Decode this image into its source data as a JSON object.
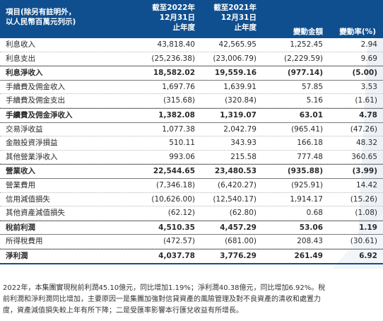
{
  "header": {
    "label_line1": "項目(除另有註明外，",
    "label_line2": "以人民幣百萬元列示)",
    "col2022": "截至2022年\n12月31日\n止年度",
    "col2021": "截至2021年\n12月31日\n止年度",
    "change": "變動金額",
    "change_pct": "變動率(%)"
  },
  "rows": [
    {
      "name": "利息收入",
      "v2022": "43,818.40",
      "v2021": "42,565.95",
      "change": "1,252.45",
      "pct": "2.94",
      "bold": false
    },
    {
      "name": "利息支出",
      "v2022": "(25,236.38)",
      "v2021": "(23,006.79)",
      "change": "(2,229.59)",
      "pct": "9.69",
      "bold": false
    },
    {
      "name": "利息淨收入",
      "v2022": "18,582.02",
      "v2021": "19,559.16",
      "change": "(977.14)",
      "pct": "(5.00)",
      "bold": true
    },
    {
      "name": "手續費及佣金收入",
      "v2022": "1,697.76",
      "v2021": "1,639.91",
      "change": "57.85",
      "pct": "3.53",
      "bold": false
    },
    {
      "name": "手續費及佣金支出",
      "v2022": "(315.68)",
      "v2021": "(320.84)",
      "change": "5.16",
      "pct": "(1.61)",
      "bold": false
    },
    {
      "name": "手續費及佣金淨收入",
      "v2022": "1,382.08",
      "v2021": "1,319.07",
      "change": "63.01",
      "pct": "4.78",
      "bold": true
    },
    {
      "name": "交易淨收益",
      "v2022": "1,077.38",
      "v2021": "2,042.79",
      "change": "(965.41)",
      "pct": "(47.26)",
      "bold": false
    },
    {
      "name": "金融投資淨損益",
      "v2022": "510.11",
      "v2021": "343.93",
      "change": "166.18",
      "pct": "48.32",
      "bold": false
    },
    {
      "name": "其他營業淨收入",
      "v2022": "993.06",
      "v2021": "215.58",
      "change": "777.48",
      "pct": "360.65",
      "bold": false
    },
    {
      "name": "營業收入",
      "v2022": "22,544.65",
      "v2021": "23,480.53",
      "change": "(935.88)",
      "pct": "(3.99)",
      "bold": true
    },
    {
      "name": "營業費用",
      "v2022": "(7,346.18)",
      "v2021": "(6,420.27)",
      "change": "(925.91)",
      "pct": "14.42",
      "bold": false
    },
    {
      "name": "信用減值損失",
      "v2022": "(10,626.00)",
      "v2021": "(12,540.17)",
      "change": "1,914.17",
      "pct": "(15.26)",
      "bold": false
    },
    {
      "name": "其他資產減值損失",
      "v2022": "(62.12)",
      "v2021": "(62.80)",
      "change": "0.68",
      "pct": "(1.08)",
      "bold": false
    },
    {
      "name": "稅前利潤",
      "v2022": "4,510.35",
      "v2021": "4,457.29",
      "change": "53.06",
      "pct": "1.19",
      "bold": true
    },
    {
      "name": "所得稅費用",
      "v2022": "(472.57)",
      "v2021": "(681.00)",
      "change": "208.43",
      "pct": "(30.61)",
      "bold": false
    },
    {
      "name": "淨利潤",
      "v2022": "4,037.78",
      "v2021": "3,776.29",
      "change": "261.49",
      "pct": "6.92",
      "bold": true
    }
  ],
  "paragraph": "2022年，本集團實現稅前利潤45.10億元，同比增加1.19%；淨利潤40.38億元，同比增加6.92%。稅\n前利潤和淨利潤同比增加，主要原因一是集團加強對信貸資產的風險管理及對不良資產的清收和處置力\n度，資產減值損失較上年有所下降；二是受匯率影響本行匯兌收益有所增長。",
  "colors": {
    "header_bg": "#0f4f8f",
    "header_text": "#ffffff",
    "deco_shape": "#eef2f7"
  }
}
